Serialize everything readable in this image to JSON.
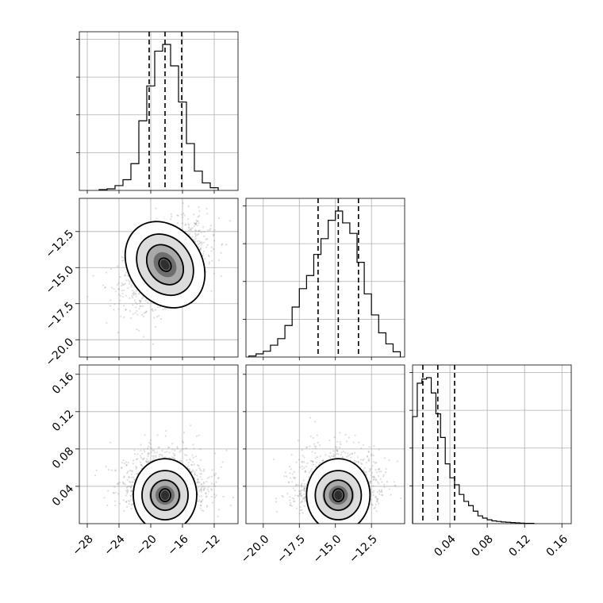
{
  "chart_data": {
    "type": "corner",
    "parameters": [
      {
        "xticks": [
          "−28",
          "−24",
          "−20",
          "−16",
          "−12"
        ],
        "range": [
          -29,
          -9
        ]
      },
      {
        "xticks": [
          "−20.0",
          "−17.5",
          "−15.0",
          "−12.5"
        ],
        "yticks": [
          "−12.5",
          "−15.0",
          "−17.5",
          "−20.0"
        ],
        "range": [
          -21.2,
          -10.2
        ]
      },
      {
        "xticks": [
          "0.04",
          "0.08",
          "0.12",
          "0.16"
        ],
        "yticks": [
          "0.16",
          "0.12",
          "0.08",
          "0.04"
        ],
        "range": [
          0.0,
          0.17
        ]
      }
    ],
    "panels": [
      {
        "id": "hist-p1",
        "type": "histogram",
        "bin_edges": [
          -26.5,
          -25.5,
          -24.5,
          -23.5,
          -22.5,
          -21.5,
          -20.5,
          -19.5,
          -18.5,
          -17.5,
          -16.5,
          -15.5,
          -14.5,
          -13.5,
          -12.5,
          -11.5
        ],
        "counts": [
          3,
          6,
          18,
          40,
          100,
          260,
          390,
          520,
          545,
          465,
          330,
          175,
          72,
          28,
          10
        ],
        "quantiles": [
          -20.2,
          -18.2,
          -16.1
        ]
      },
      {
        "id": "hist-p2",
        "type": "histogram",
        "bin_edges": [
          -21.0,
          -20.5,
          -20.0,
          -19.5,
          -19.0,
          -18.5,
          -18.0,
          -17.5,
          -17.0,
          -16.5,
          -16.0,
          -15.5,
          -15.0,
          -14.5,
          -14.0,
          -13.5,
          -13.0,
          -12.5,
          -12.0,
          -11.5,
          -11.0,
          -10.5
        ],
        "counts": [
          4,
          12,
          22,
          45,
          70,
          120,
          190,
          260,
          310,
          390,
          450,
          520,
          555,
          510,
          470,
          360,
          240,
          160,
          92,
          50,
          20
        ],
        "quantiles": [
          -16.2,
          -14.8,
          -13.4
        ]
      },
      {
        "id": "hist-p3",
        "type": "histogram",
        "bin_edges": [
          0.0,
          0.005,
          0.01,
          0.015,
          0.02,
          0.025,
          0.03,
          0.035,
          0.04,
          0.045,
          0.05,
          0.055,
          0.06,
          0.065,
          0.07,
          0.075,
          0.08,
          0.085,
          0.09,
          0.095,
          0.1,
          0.105,
          0.11,
          0.115,
          0.12,
          0.125,
          0.13
        ],
        "counts": [
          385,
          505,
          520,
          525,
          470,
          395,
          310,
          215,
          165,
          140,
          105,
          80,
          65,
          45,
          28,
          20,
          14,
          10,
          8,
          6,
          5,
          4,
          3,
          2,
          1,
          1
        ],
        "quantiles": [
          0.011,
          0.027,
          0.045
        ]
      },
      {
        "id": "scatter-p1-p2",
        "type": "2d-density",
        "x_center": -18.2,
        "y_center": -14.8,
        "correlation": 0.45
      },
      {
        "id": "scatter-p1-p3",
        "type": "2d-density",
        "x_center": -18.2,
        "y_center": 0.022,
        "correlation": 0.0
      },
      {
        "id": "scatter-p2-p3",
        "type": "2d-density",
        "x_center": -14.8,
        "y_center": 0.022,
        "correlation": 0.3
      }
    ],
    "grid": true
  }
}
